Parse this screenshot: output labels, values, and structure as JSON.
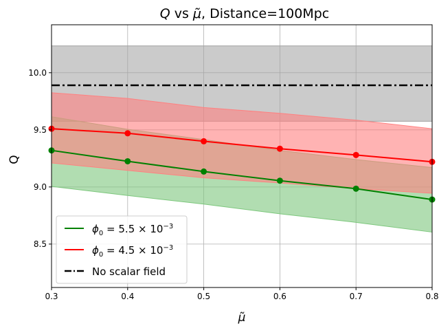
{
  "chart_data": {
    "type": "line",
    "title": "Q vs μ̃, Distance=100Mpc",
    "title_parts": {
      "q": "Q",
      "vs": " vs ",
      "mu": "μ̃",
      "rest": ", Distance=100Mpc"
    },
    "xlabel": "μ̃",
    "ylabel": "Q",
    "xlim": [
      0.3,
      0.8
    ],
    "ylim": [
      8.12,
      10.42
    ],
    "xticks": [
      0.3,
      0.4,
      0.5,
      0.6,
      0.7,
      0.8
    ],
    "xtick_labels": [
      "0.3",
      "0.4",
      "0.5",
      "0.6",
      "0.7",
      "0.8"
    ],
    "yticks": [
      8.5,
      9.0,
      9.5,
      10.0
    ],
    "ytick_labels": [
      "8.5",
      "9.0",
      "9.5",
      "10.0"
    ],
    "grid": true,
    "legend_position": "lower-left",
    "series": [
      {
        "name": "ϕ₀ = 5.5 × 10⁻³",
        "legend_parts": {
          "phi": "ϕ",
          "sub": "0",
          "eq": " = 5.5 × 10",
          "sup": "−3"
        },
        "color": "#008000",
        "band_color": "#7dc77d",
        "x": [
          0.3,
          0.4,
          0.5,
          0.6,
          0.7,
          0.8
        ],
        "y": [
          9.32,
          9.225,
          9.135,
          9.055,
          8.985,
          8.89
        ],
        "band_upper": [
          9.615,
          9.505,
          9.415,
          9.32,
          9.24,
          9.17
        ],
        "band_lower": [
          9.005,
          8.925,
          8.85,
          8.765,
          8.69,
          8.605
        ]
      },
      {
        "name": "ϕ₀ = 4.5 × 10⁻³",
        "legend_parts": {
          "phi": "ϕ",
          "sub": "0",
          "eq": " = 4.5 × 10",
          "sup": "−3"
        },
        "color": "#ff0000",
        "band_color": "#ff8080",
        "x": [
          0.3,
          0.4,
          0.5,
          0.6,
          0.7,
          0.8
        ],
        "y": [
          9.51,
          9.47,
          9.4,
          9.335,
          9.28,
          9.22
        ],
        "band_upper": [
          9.825,
          9.775,
          9.695,
          9.645,
          9.585,
          9.51
        ],
        "band_lower": [
          9.21,
          9.145,
          9.08,
          9.035,
          8.985,
          8.945
        ]
      }
    ],
    "reference": {
      "name": "No scalar field",
      "value": 9.89,
      "band": [
        9.575,
        10.235
      ],
      "color": "#000000",
      "band_color": "#a0a0a0",
      "style": "dash-dot"
    }
  }
}
